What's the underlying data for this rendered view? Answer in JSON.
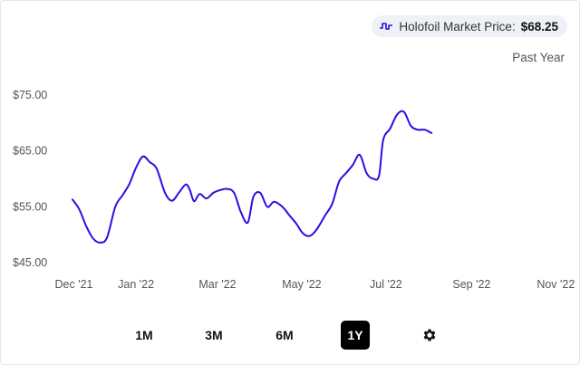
{
  "header": {
    "price_label": "Holofoil Market Price:",
    "price_value": "$68.25",
    "icon": "price-trend-icon",
    "range_label": "Past Year"
  },
  "controls": {
    "ranges": [
      "1M",
      "3M",
      "6M",
      "1Y"
    ],
    "active": "1Y",
    "settings_icon": "gear-icon"
  },
  "colors": {
    "line": "#2a0ee0",
    "active_button": "#000000",
    "pill_background": "#eef1f5"
  },
  "chart_data": {
    "type": "line",
    "title": "",
    "xlabel": "",
    "ylabel": "",
    "y_ticks": [
      "$75.00",
      "$65.00",
      "$55.00",
      "$45.00"
    ],
    "y_tick_values": [
      75,
      65,
      55,
      45
    ],
    "ylim": [
      45,
      75
    ],
    "x_ticks": [
      "Dec '21",
      "Jan '22",
      "Mar '22",
      "May '22",
      "Jul '22",
      "Sep '22",
      "Nov '22"
    ],
    "x_tick_dates": [
      "2021-12-01",
      "2022-01-15",
      "2022-03-15",
      "2022-05-15",
      "2022-07-15",
      "2022-09-15",
      "2022-11-15"
    ],
    "grid": false,
    "series": [
      {
        "color": "#2a0ee0",
        "points": [
          [
            "2021-11-30",
            56.3
          ],
          [
            "2021-12-05",
            54.5
          ],
          [
            "2021-12-10",
            51.5
          ],
          [
            "2021-12-15",
            49.3
          ],
          [
            "2021-12-20",
            48.6
          ],
          [
            "2021-12-25",
            49.5
          ],
          [
            "2021-12-31",
            55.0
          ],
          [
            "2022-01-05",
            57.0
          ],
          [
            "2022-01-10",
            59.0
          ],
          [
            "2022-01-15",
            62.0
          ],
          [
            "2022-01-20",
            64.0
          ],
          [
            "2022-01-25",
            63.0
          ],
          [
            "2022-01-30",
            61.8
          ],
          [
            "2022-02-05",
            57.5
          ],
          [
            "2022-02-10",
            56.1
          ],
          [
            "2022-02-15",
            57.5
          ],
          [
            "2022-02-20",
            59.0
          ],
          [
            "2022-02-23",
            58.0
          ],
          [
            "2022-02-26",
            56.0
          ],
          [
            "2022-03-02",
            57.3
          ],
          [
            "2022-03-07",
            56.5
          ],
          [
            "2022-03-12",
            57.5
          ],
          [
            "2022-03-17",
            58.0
          ],
          [
            "2022-03-22",
            58.2
          ],
          [
            "2022-03-27",
            57.5
          ],
          [
            "2022-04-01",
            54.0
          ],
          [
            "2022-04-06",
            52.2
          ],
          [
            "2022-04-10",
            56.8
          ],
          [
            "2022-04-15",
            57.5
          ],
          [
            "2022-04-20",
            55.0
          ],
          [
            "2022-04-25",
            55.9
          ],
          [
            "2022-05-01",
            55.0
          ],
          [
            "2022-05-06",
            53.5
          ],
          [
            "2022-05-11",
            52.0
          ],
          [
            "2022-05-16",
            50.2
          ],
          [
            "2022-05-21",
            49.8
          ],
          [
            "2022-05-26",
            51.0
          ],
          [
            "2022-06-01",
            53.5
          ],
          [
            "2022-06-06",
            55.5
          ],
          [
            "2022-06-11",
            59.5
          ],
          [
            "2022-06-16",
            61.0
          ],
          [
            "2022-06-21",
            62.5
          ],
          [
            "2022-06-26",
            64.3
          ],
          [
            "2022-07-01",
            61.0
          ],
          [
            "2022-07-06",
            60.0
          ],
          [
            "2022-07-10",
            60.6
          ],
          [
            "2022-07-13",
            67.0
          ],
          [
            "2022-07-18",
            69.0
          ],
          [
            "2022-07-23",
            71.5
          ],
          [
            "2022-07-28",
            72.0
          ],
          [
            "2022-08-02",
            69.5
          ],
          [
            "2022-08-07",
            68.8
          ],
          [
            "2022-08-12",
            68.8
          ],
          [
            "2022-08-17",
            68.2
          ]
        ]
      }
    ]
  }
}
